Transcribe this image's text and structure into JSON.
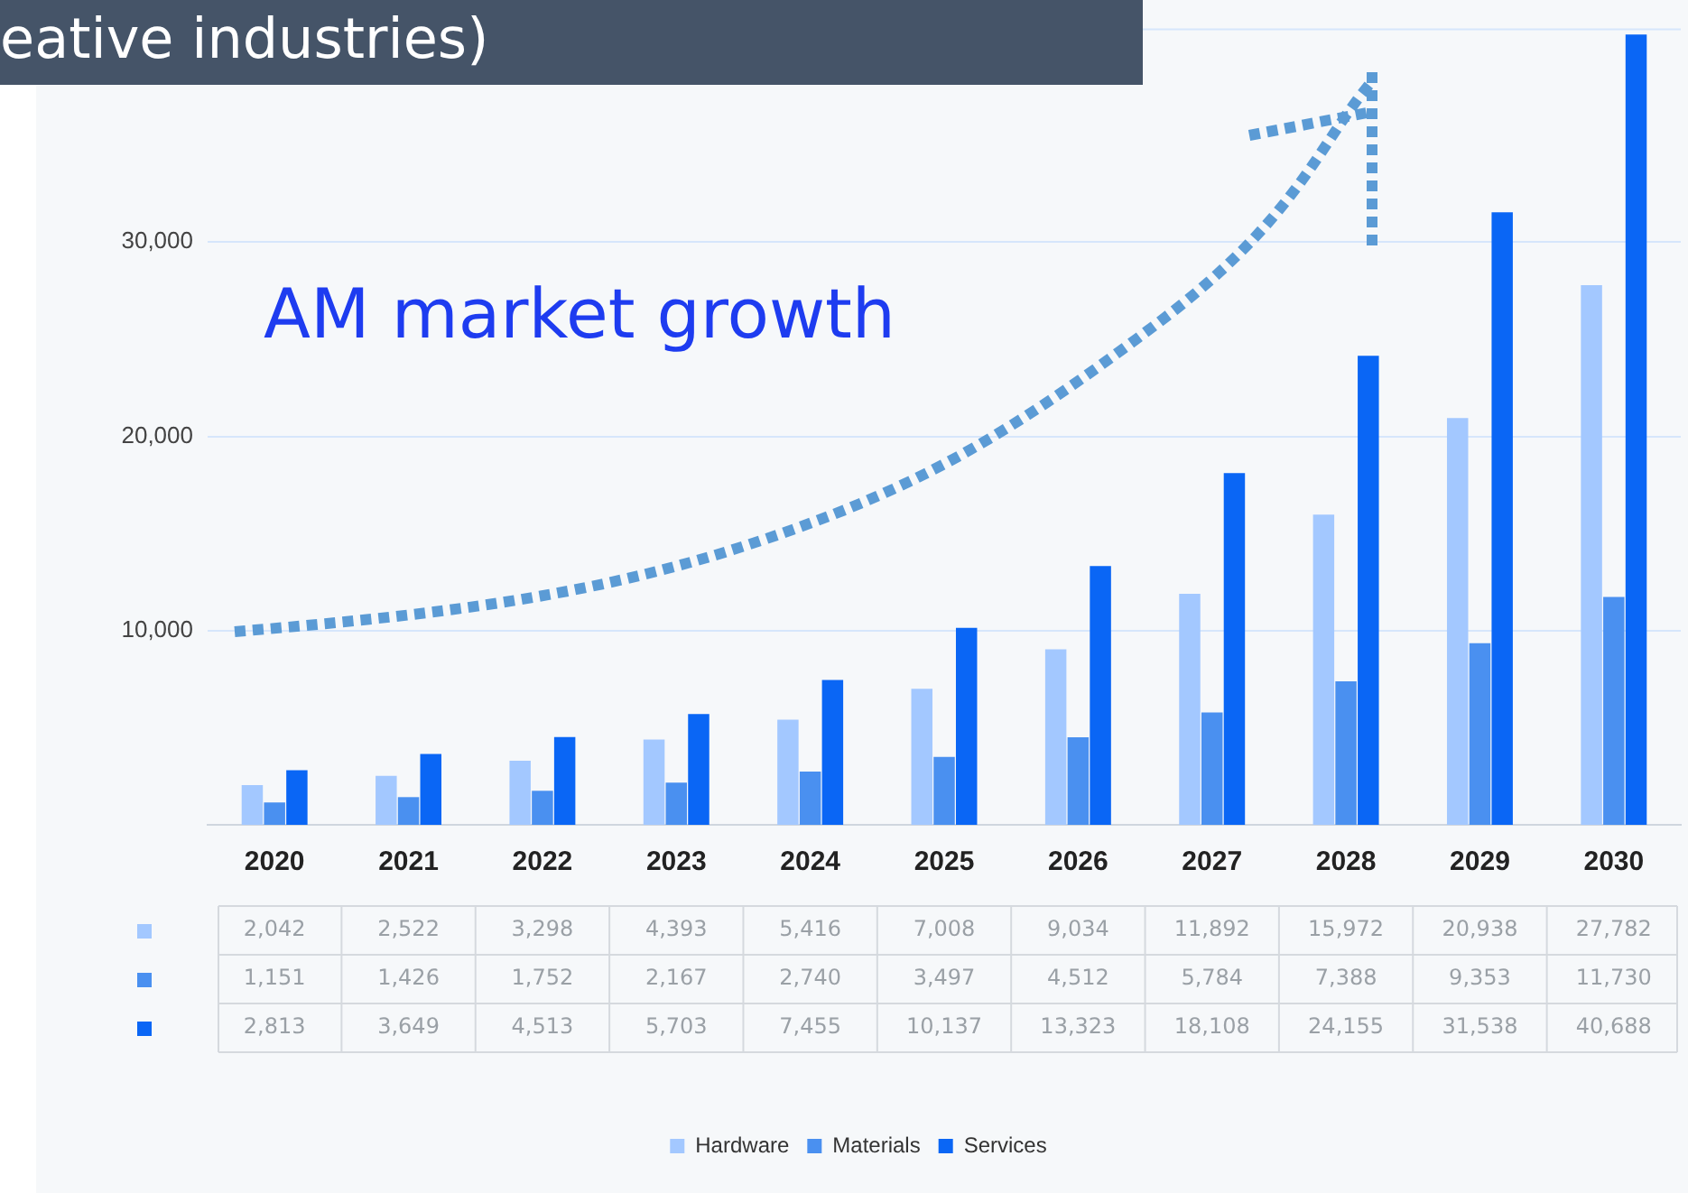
{
  "chart_data": {
    "type": "bar",
    "title": "eative industries)",
    "categories": [
      "2020",
      "2021",
      "2022",
      "2023",
      "2024",
      "2025",
      "2026",
      "2027",
      "2028",
      "2029",
      "2030"
    ],
    "series": [
      {
        "name": "Hardware",
        "color": "#a3c8ff",
        "values": [
          2042,
          2522,
          3298,
          4393,
          5416,
          7008,
          9034,
          11892,
          15972,
          20938,
          27782
        ],
        "value_labels": [
          "2,042",
          "2,522",
          "3,298",
          "4,393",
          "5,416",
          "7,008",
          "9,034",
          "11,892",
          "15,972",
          "20,938",
          "27,782"
        ]
      },
      {
        "name": "Materials",
        "color": "#4a90f0",
        "values": [
          1151,
          1426,
          1752,
          2167,
          2740,
          3497,
          4512,
          5784,
          7388,
          9353,
          11730
        ],
        "value_labels": [
          "1,151",
          "1,426",
          "1,752",
          "2,167",
          "2,740",
          "3,497",
          "4,512",
          "5,784",
          "7,388",
          "9,353",
          "11,730"
        ]
      },
      {
        "name": "Services",
        "color": "#0a66f5",
        "values": [
          2813,
          3649,
          4513,
          5703,
          7455,
          10137,
          13323,
          18108,
          24155,
          31538,
          40688
        ],
        "value_labels": [
          "2,813",
          "3,649",
          "4,513",
          "5,703",
          "7,455",
          "10,137",
          "13,323",
          "18,108",
          "24,155",
          "31,538",
          "40,688"
        ]
      }
    ],
    "ylim": [
      0,
      41000
    ],
    "yticks": [
      {
        "value": 10000,
        "label": "10,000"
      },
      {
        "value": 20000,
        "label": "20,000"
      },
      {
        "value": 30000,
        "label": "30,000"
      }
    ],
    "grid": "y",
    "legend": "bottom",
    "annotations": [
      "AM market growth"
    ]
  }
}
